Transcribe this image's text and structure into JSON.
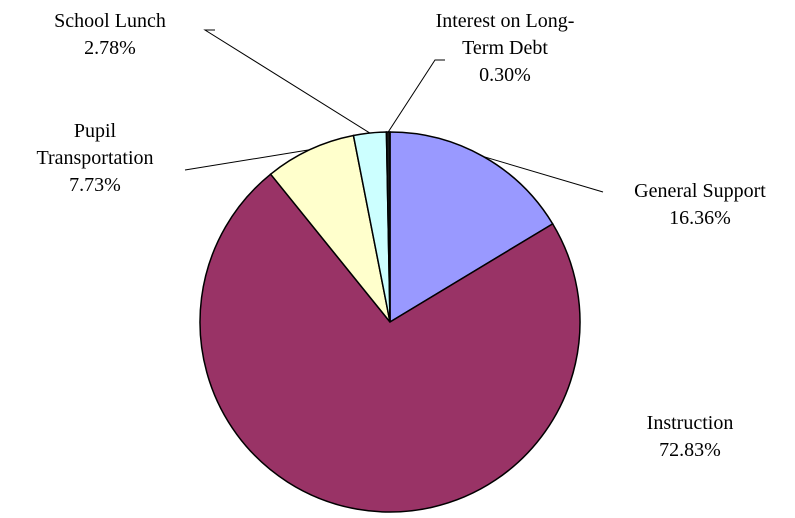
{
  "chart_data": {
    "type": "pie",
    "categories": [
      "General Support",
      "Instruction",
      "Pupil Transportation",
      "School Lunch",
      "Interest on Long-Term Debt"
    ],
    "values": [
      16.36,
      72.83,
      7.73,
      2.78,
      0.3
    ],
    "value_labels": [
      "16.36%",
      "72.83%",
      "7.73%",
      "2.78%",
      "0.30%"
    ],
    "colors": [
      "#9999ff",
      "#993366",
      "#ffffcc",
      "#ccffff",
      "#1a1a1a"
    ]
  }
}
